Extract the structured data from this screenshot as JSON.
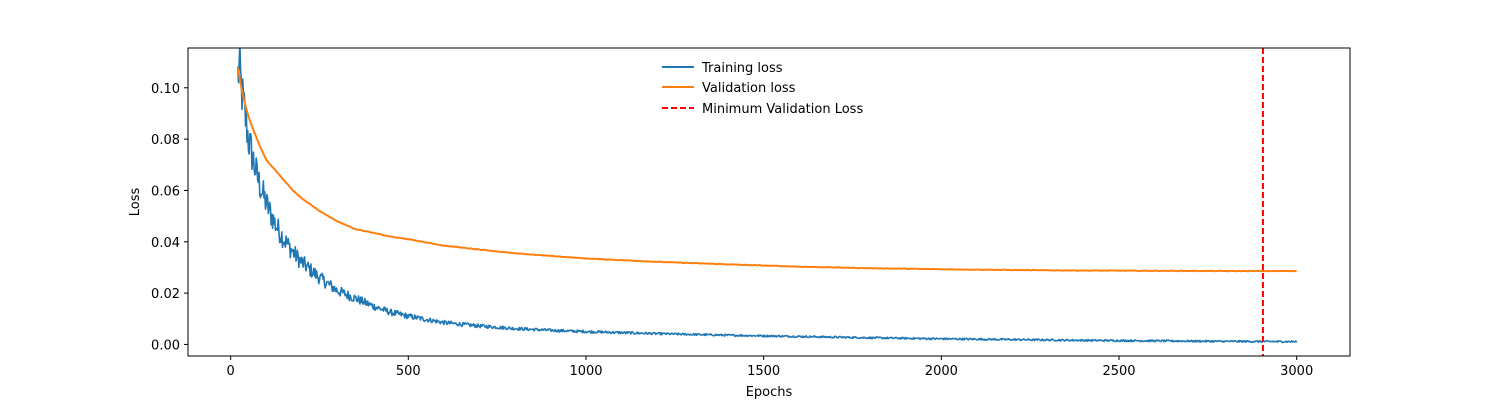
{
  "chart_data": {
    "type": "line",
    "title": "",
    "xlabel": "Epochs",
    "ylabel": "Loss",
    "xlim": [
      -120,
      3150
    ],
    "ylim": [
      -0.0045,
      0.1155
    ],
    "xticks": [
      0,
      500,
      1000,
      1500,
      2000,
      2500,
      3000
    ],
    "xtick_labels": [
      "0",
      "500",
      "1000",
      "1500",
      "2000",
      "2500",
      "3000"
    ],
    "yticks": [
      0.0,
      0.02,
      0.04,
      0.06,
      0.08,
      0.1
    ],
    "ytick_labels": [
      "0.00",
      "0.02",
      "0.04",
      "0.06",
      "0.08",
      "0.10"
    ],
    "grid": false,
    "legend_position": "top-center",
    "series": [
      {
        "name": "Training loss",
        "color": "#1f77b4",
        "style": "solid",
        "noisy": true,
        "x": [
          20,
          25,
          30,
          40,
          50,
          60,
          70,
          80,
          100,
          125,
          150,
          175,
          200,
          250,
          300,
          350,
          400,
          450,
          500,
          600,
          700,
          800,
          900,
          1000,
          1200,
          1400,
          1600,
          1800,
          2000,
          2200,
          2400,
          2600,
          2800,
          3000
        ],
        "y": [
          0.105,
          0.108,
          0.1,
          0.09,
          0.08,
          0.074,
          0.068,
          0.063,
          0.055,
          0.047,
          0.041,
          0.036,
          0.032,
          0.026,
          0.021,
          0.018,
          0.015,
          0.0125,
          0.011,
          0.0085,
          0.0072,
          0.0062,
          0.0055,
          0.005,
          0.0042,
          0.0036,
          0.0031,
          0.0026,
          0.0022,
          0.0019,
          0.0016,
          0.0014,
          0.0012,
          0.0011
        ]
      },
      {
        "name": "Validation loss",
        "color": "#ff7f0e",
        "style": "solid",
        "noisy": false,
        "x": [
          20,
          30,
          40,
          50,
          60,
          80,
          100,
          125,
          150,
          175,
          200,
          250,
          300,
          350,
          400,
          450,
          500,
          600,
          700,
          800,
          900,
          1000,
          1200,
          1400,
          1600,
          1800,
          2000,
          2200,
          2400,
          2600,
          2800,
          3000
        ],
        "y": [
          0.108,
          0.1,
          0.094,
          0.089,
          0.085,
          0.078,
          0.072,
          0.068,
          0.064,
          0.06,
          0.057,
          0.052,
          0.048,
          0.045,
          0.0435,
          0.042,
          0.041,
          0.0385,
          0.037,
          0.0355,
          0.0345,
          0.0335,
          0.0322,
          0.0312,
          0.0303,
          0.0297,
          0.0293,
          0.029,
          0.0288,
          0.0287,
          0.0286,
          0.0286
        ]
      },
      {
        "name": "Minimum Validation Loss",
        "color": "#ff0000",
        "style": "dashed",
        "vline_x": 2905
      }
    ]
  }
}
